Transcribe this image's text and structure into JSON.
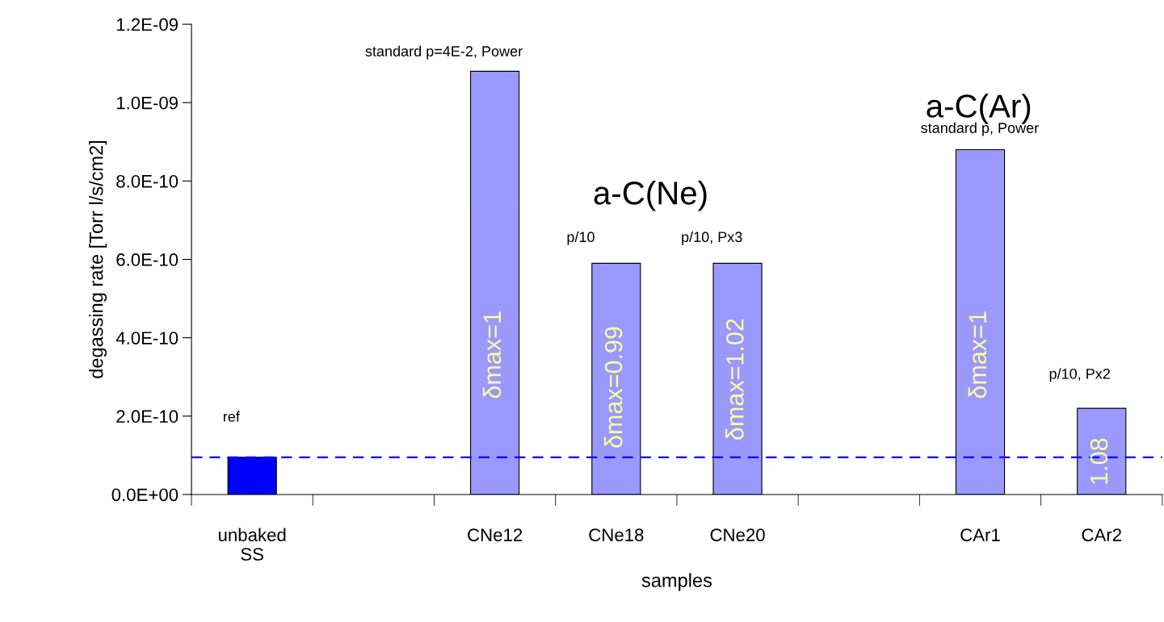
{
  "chart_data": {
    "type": "bar",
    "xlabel": "samples",
    "ylabel": "degassing rate [Torr l/s/cm2]",
    "categories": [
      "unbaked\nSS",
      null,
      "CNe12",
      "CNe18",
      "CNe20",
      null,
      "CAr1",
      "CAr2"
    ],
    "values": [
      9.5e-11,
      null,
      1.08e-09,
      5.9e-10,
      5.9e-10,
      null,
      8.8e-10,
      2.2e-10
    ],
    "colors": [
      "#0000ff",
      "#9999ff",
      "#9999ff",
      "#9999ff",
      "#9999ff",
      "#9999ff",
      "#9999ff",
      "#9999ff"
    ],
    "ylim": [
      0,
      1.2e-09
    ],
    "yticks": [
      {
        "value": 0,
        "label": "0.0E+00"
      },
      {
        "value": 2e-10,
        "label": "2.0E-10"
      },
      {
        "value": 4e-10,
        "label": "4.0E-10"
      },
      {
        "value": 6e-10,
        "label": "6.0E-10"
      },
      {
        "value": 8e-10,
        "label": "8.0E-10"
      },
      {
        "value": 1e-09,
        "label": "1.0E-09"
      },
      {
        "value": 1.2e-09,
        "label": "1.2E-09"
      }
    ],
    "ref_lines": [
      {
        "axis": "y",
        "value": 9.5e-11,
        "color": "#0000ff",
        "line_style": "dashed"
      }
    ],
    "annotations": [
      "ref",
      "standard p=4E-2, Power",
      "a-C(Ne)",
      "p/10",
      "p/10, Px3",
      "a-C(Ar)",
      "standard p, Power",
      "p/10, Px2",
      "δmax=1",
      "δmax=0.99",
      "δmax=1.02",
      "δmax=1",
      "1.08"
    ]
  }
}
